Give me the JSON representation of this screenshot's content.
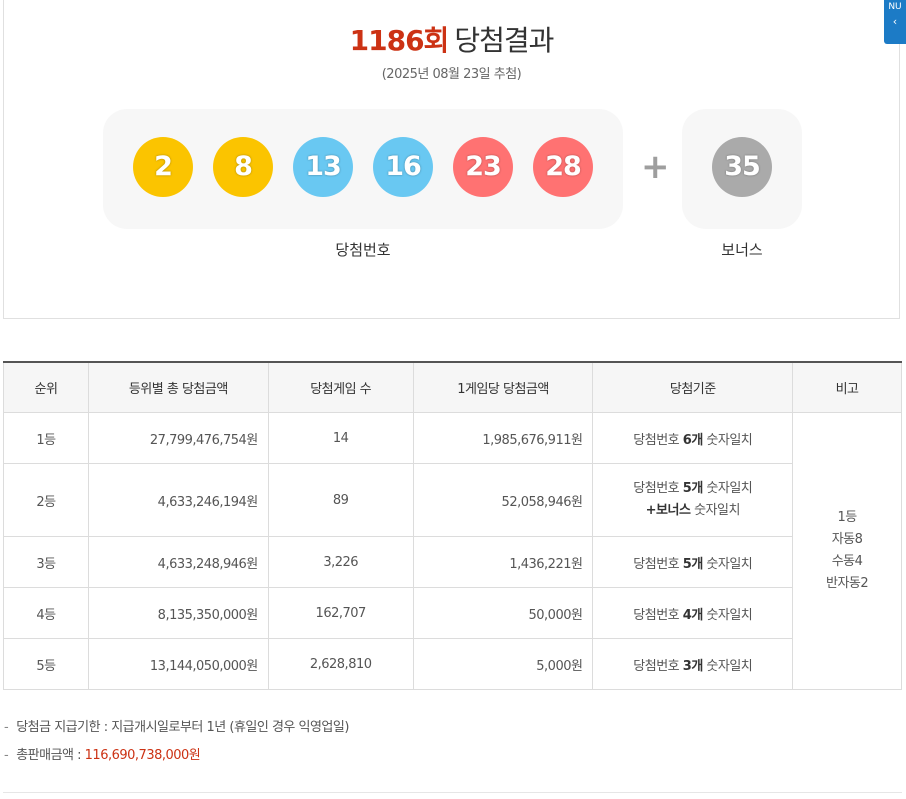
{
  "result": {
    "round": "1186회",
    "label": "당첨결과",
    "draw_date": "(2025년 08월 23일 추첨)",
    "win_caption": "당첨번호",
    "bonus_caption": "보너스",
    "plus": "+",
    "numbers": [
      "2",
      "8",
      "13",
      "16",
      "23",
      "28"
    ],
    "bonus": "35",
    "ball_colors": [
      "#fbc400",
      "#fbc400",
      "#69c8f2",
      "#69c8f2",
      "#ff7272",
      "#ff7272"
    ],
    "bonus_color": "#aaaaaa"
  },
  "side_tab": {
    "text": "NU",
    "arrow": "‹"
  },
  "table": {
    "headers": [
      "순위",
      "등위별 총 당첨금액",
      "당첨게임 수",
      "1게임당 당첨금액",
      "당첨기준",
      "비고"
    ],
    "rows": [
      {
        "rank": "1등",
        "total": "27,799,476,754원",
        "winners": "14",
        "per_game": "1,985,676,911원",
        "crit_a": "당첨번호 ",
        "crit_b": "6개",
        "crit_c": " 숫자일치"
      },
      {
        "rank": "2등",
        "total": "4,633,246,194원",
        "winners": "89",
        "per_game": "52,058,946원",
        "crit_a": "당첨번호 ",
        "crit_b": "5개",
        "crit_c": " 숫자일치",
        "crit_d": "+보너스",
        "crit_e": " 숫자일치"
      },
      {
        "rank": "3등",
        "total": "4,633,248,946원",
        "winners": "3,226",
        "per_game": "1,436,221원",
        "crit_a": "당첨번호 ",
        "crit_b": "5개",
        "crit_c": " 숫자일치"
      },
      {
        "rank": "4등",
        "total": "8,135,350,000원",
        "winners": "162,707",
        "per_game": "50,000원",
        "crit_a": "당첨번호 ",
        "crit_b": "4개",
        "crit_c": " 숫자일치"
      },
      {
        "rank": "5등",
        "total": "13,144,050,000원",
        "winners": "2,628,810",
        "per_game": "5,000원",
        "crit_a": "당첨번호 ",
        "crit_b": "3개",
        "crit_c": " 숫자일치"
      }
    ],
    "note_lines": [
      "1등",
      "자동8",
      "수동4",
      "반자동2"
    ]
  },
  "notes": {
    "dash": "-",
    "deadline_label": "당첨금 지급기한 : ",
    "deadline_value": "지급개시일로부터 1년 (휴일인 경우 익영업일)",
    "sales_label": "총판매금액 : ",
    "sales_value": "116,690,738,000원"
  }
}
